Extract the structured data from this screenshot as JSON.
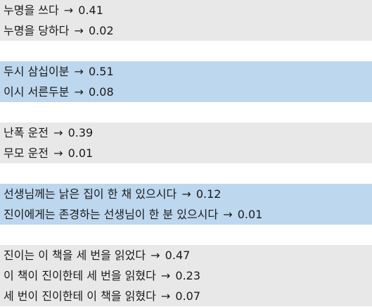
{
  "groups": [
    {
      "style": "gray",
      "rows": [
        {
          "text": "누명을 쓰다",
          "arrow": "→",
          "score": "0.41"
        },
        {
          "text": "누명을 당하다",
          "arrow": "→",
          "score": "0.02"
        }
      ]
    },
    {
      "style": "blue",
      "rows": [
        {
          "text": "두시 삼십이분",
          "arrow": "→",
          "score": "0.51"
        },
        {
          "text": "이시 서른두분",
          "arrow": "→",
          "score": "0.08"
        }
      ]
    },
    {
      "style": "gray",
      "rows": [
        {
          "text": "난폭 운전",
          "arrow": "→",
          "score": "0.39"
        },
        {
          "text": "무모 운전",
          "arrow": "→",
          "score": "0.01"
        }
      ]
    },
    {
      "style": "blue",
      "rows": [
        {
          "text": "선생님께는 낡은 집이 한 채 있으시다",
          "arrow": "→",
          "score": "0.12"
        },
        {
          "text": "진이에게는 존경하는 선생님이 한 분 있으시다",
          "arrow": "→",
          "score": "0.01"
        }
      ]
    },
    {
      "style": "gray",
      "rows": [
        {
          "text": "진이는 이 책을 세 번을 읽었다",
          "arrow": "→",
          "score": "0.47"
        },
        {
          "text": "이 책이 진이한테 세 번을 읽혔다",
          "arrow": "→",
          "score": "0.23"
        },
        {
          "text": "세 번이 진이한테 이 책을 읽혔다",
          "arrow": "→",
          "score": "0.07"
        }
      ]
    }
  ],
  "colors": {
    "gray_band": "#e8e8e8",
    "blue_band": "#bdd7ee",
    "spacer": "#ffffff",
    "text": "#1a1a1a"
  }
}
